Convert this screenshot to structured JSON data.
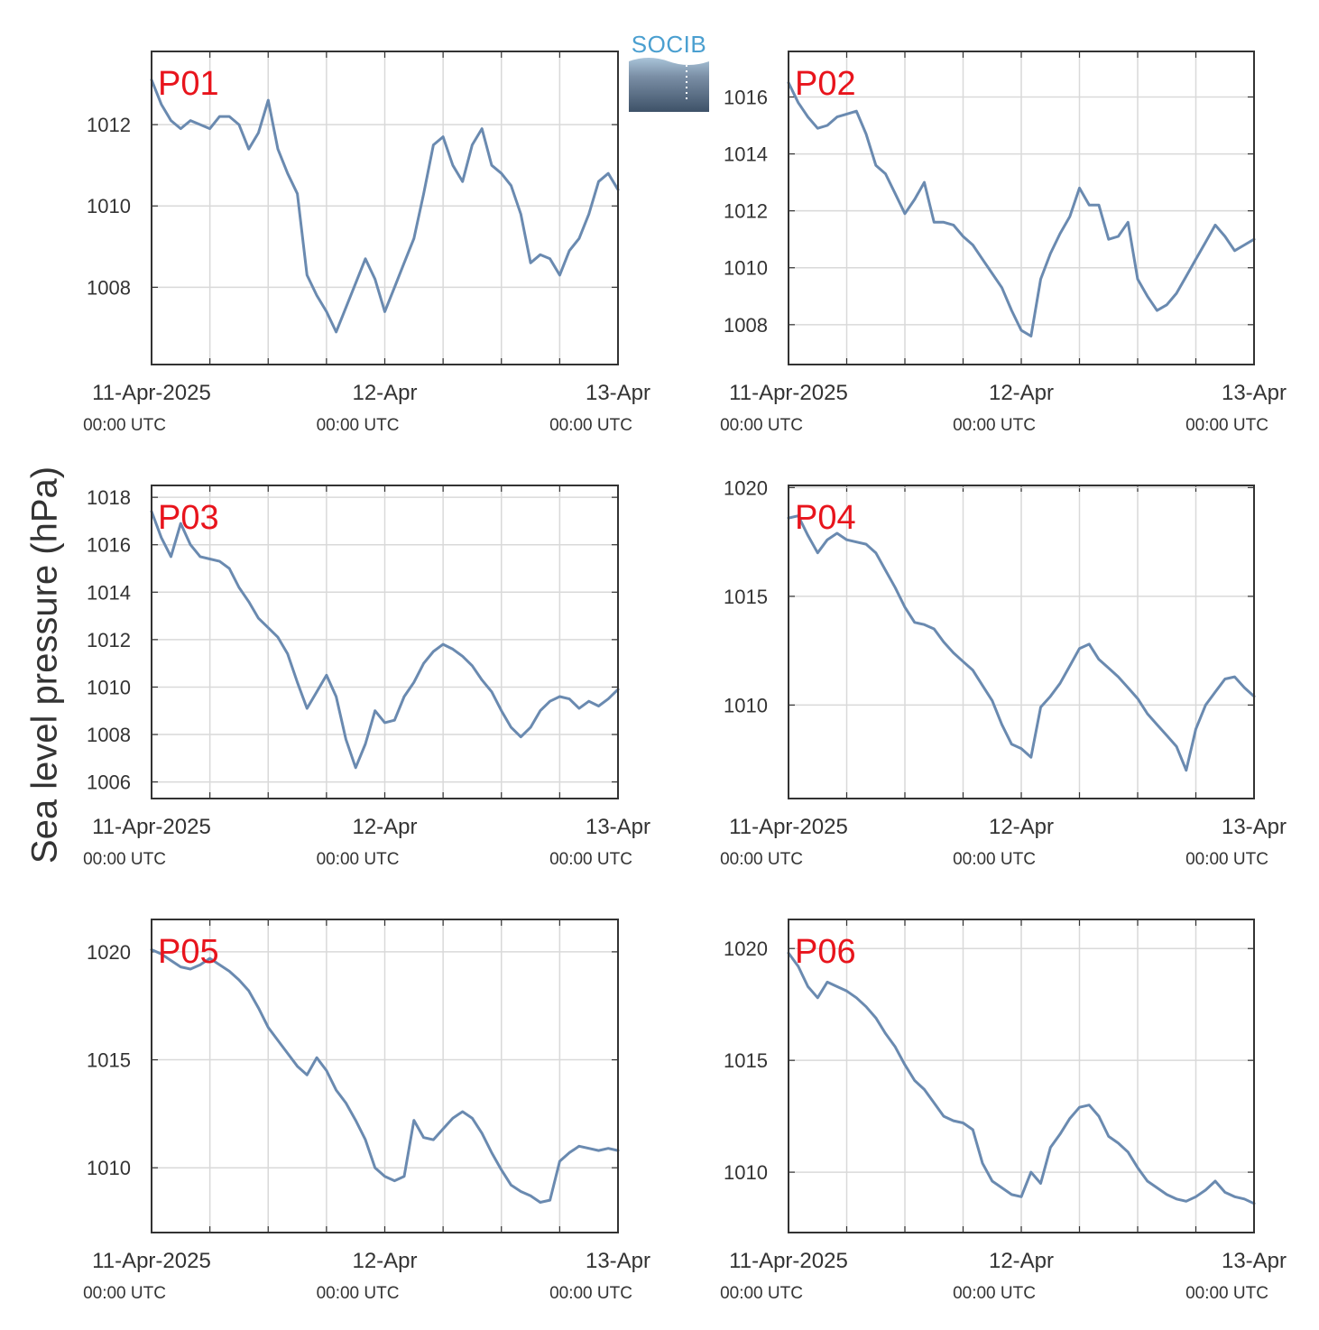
{
  "figure": {
    "ylabel": "Sea level pressure (hPa)",
    "logo_text": "SOCIB"
  },
  "colors": {
    "line": "#6a8ab0",
    "panel_label": "#e8141c",
    "grid": "#d9d9d9",
    "axis": "#333333"
  },
  "chart_data": [
    {
      "type": "line",
      "title": "P01",
      "x_tick_labels": [
        [
          "11-Apr-2025",
          "00:00 UTC"
        ],
        [
          "12-Apr",
          "00:00 UTC"
        ],
        [
          "13-Apr",
          "00:00 UTC"
        ]
      ],
      "xlim_hours": [
        0,
        48
      ],
      "ylim": [
        1006.1,
        1013.8
      ],
      "yticks": [
        1008,
        1010,
        1012
      ],
      "series": [
        {
          "x_hours": [
            0,
            1,
            2,
            3,
            4,
            5,
            6,
            7,
            8,
            9,
            10,
            11,
            12,
            13,
            14,
            15,
            16,
            17,
            18,
            19,
            20,
            21,
            22,
            23,
            24,
            25,
            26,
            27,
            28,
            29,
            30,
            31,
            32,
            33,
            34,
            35,
            36,
            37,
            38,
            39,
            40,
            41,
            42,
            43,
            44,
            45,
            46,
            47,
            48
          ],
          "values": [
            1013.1,
            1012.5,
            1012.1,
            1011.9,
            1012.1,
            1012.0,
            1011.9,
            1012.2,
            1012.2,
            1012.0,
            1011.4,
            1011.8,
            1012.6,
            1011.4,
            1010.8,
            1010.3,
            1008.3,
            1007.8,
            1007.4,
            1006.9,
            1007.5,
            1008.1,
            1008.7,
            1008.2,
            1007.4,
            1008.0,
            1008.6,
            1009.2,
            1010.3,
            1011.5,
            1011.7,
            1011.0,
            1010.6,
            1011.5,
            1011.9,
            1011.0,
            1010.8,
            1010.5,
            1009.8,
            1008.6,
            1008.8,
            1008.7,
            1008.3,
            1008.9,
            1009.2,
            1009.8,
            1010.6,
            1010.8,
            1010.4
          ]
        }
      ]
    },
    {
      "type": "line",
      "title": "P02",
      "x_tick_labels": [
        [
          "11-Apr-2025",
          "00:00 UTC"
        ],
        [
          "12-Apr",
          "00:00 UTC"
        ],
        [
          "13-Apr",
          "00:00 UTC"
        ]
      ],
      "xlim_hours": [
        0,
        48
      ],
      "ylim": [
        1006.6,
        1017.6
      ],
      "yticks": [
        1008,
        1010,
        1012,
        1014,
        1016
      ],
      "series": [
        {
          "x_hours": [
            0,
            1,
            2,
            3,
            4,
            5,
            6,
            7,
            8,
            9,
            10,
            11,
            12,
            13,
            14,
            15,
            16,
            17,
            18,
            19,
            20,
            21,
            22,
            23,
            24,
            25,
            26,
            27,
            28,
            29,
            30,
            31,
            32,
            33,
            34,
            35,
            36,
            37,
            38,
            39,
            40,
            41,
            42,
            43,
            44,
            45,
            46,
            47,
            48
          ],
          "values": [
            1016.5,
            1015.8,
            1015.3,
            1014.9,
            1015.0,
            1015.3,
            1015.4,
            1015.5,
            1014.7,
            1013.6,
            1013.3,
            1012.6,
            1011.9,
            1012.4,
            1013.0,
            1011.6,
            1011.6,
            1011.5,
            1011.1,
            1010.8,
            1010.3,
            1009.8,
            1009.3,
            1008.5,
            1007.8,
            1007.6,
            1009.6,
            1010.5,
            1011.2,
            1011.8,
            1012.8,
            1012.2,
            1012.2,
            1011.0,
            1011.1,
            1011.6,
            1009.6,
            1009.0,
            1008.5,
            1008.7,
            1009.1,
            1009.7,
            1010.3,
            1010.9,
            1011.5,
            1011.1,
            1010.6,
            1010.8,
            1011.0
          ]
        }
      ]
    },
    {
      "type": "line",
      "title": "P03",
      "x_tick_labels": [
        [
          "11-Apr-2025",
          "00:00 UTC"
        ],
        [
          "12-Apr",
          "00:00 UTC"
        ],
        [
          "13-Apr",
          "00:00 UTC"
        ]
      ],
      "xlim_hours": [
        0,
        48
      ],
      "ylim": [
        1005.3,
        1018.5
      ],
      "yticks": [
        1006,
        1008,
        1010,
        1012,
        1014,
        1016,
        1018
      ],
      "series": [
        {
          "x_hours": [
            0,
            1,
            2,
            3,
            4,
            5,
            6,
            7,
            8,
            9,
            10,
            11,
            12,
            13,
            14,
            15,
            16,
            17,
            18,
            19,
            20,
            21,
            22,
            23,
            24,
            25,
            26,
            27,
            28,
            29,
            30,
            31,
            32,
            33,
            34,
            35,
            36,
            37,
            38,
            39,
            40,
            41,
            42,
            43,
            44,
            45,
            46,
            47,
            48
          ],
          "values": [
            1017.4,
            1016.3,
            1015.5,
            1016.9,
            1016.0,
            1015.5,
            1015.4,
            1015.3,
            1015.0,
            1014.2,
            1013.6,
            1012.9,
            1012.5,
            1012.1,
            1011.4,
            1010.2,
            1009.1,
            1009.8,
            1010.5,
            1009.6,
            1007.8,
            1006.6,
            1007.6,
            1009.0,
            1008.5,
            1008.6,
            1009.6,
            1010.2,
            1011.0,
            1011.5,
            1011.8,
            1011.6,
            1011.3,
            1010.9,
            1010.3,
            1009.8,
            1009.0,
            1008.3,
            1007.9,
            1008.3,
            1009.0,
            1009.4,
            1009.6,
            1009.5,
            1009.1,
            1009.4,
            1009.2,
            1009.5,
            1009.9
          ]
        }
      ]
    },
    {
      "type": "line",
      "title": "P04",
      "x_tick_labels": [
        [
          "11-Apr-2025",
          "00:00 UTC"
        ],
        [
          "12-Apr",
          "00:00 UTC"
        ],
        [
          "13-Apr",
          "00:00 UTC"
        ]
      ],
      "xlim_hours": [
        0,
        48
      ],
      "ylim": [
        1005.7,
        1020.1
      ],
      "yticks": [
        1010,
        1015,
        1020
      ],
      "series": [
        {
          "x_hours": [
            0,
            1,
            2,
            3,
            4,
            5,
            6,
            7,
            8,
            9,
            10,
            11,
            12,
            13,
            14,
            15,
            16,
            17,
            18,
            19,
            20,
            21,
            22,
            23,
            24,
            25,
            26,
            27,
            28,
            29,
            30,
            31,
            32,
            33,
            34,
            35,
            36,
            37,
            38,
            39,
            40,
            41,
            42,
            43,
            44,
            45,
            46,
            47,
            48
          ],
          "values": [
            1018.6,
            1018.7,
            1017.8,
            1017.0,
            1017.6,
            1017.9,
            1017.6,
            1017.5,
            1017.4,
            1017.0,
            1016.2,
            1015.4,
            1014.5,
            1013.8,
            1013.7,
            1013.5,
            1012.9,
            1012.4,
            1012.0,
            1011.6,
            1010.9,
            1010.2,
            1009.1,
            1008.2,
            1008.0,
            1007.6,
            1009.9,
            1010.4,
            1011.0,
            1011.8,
            1012.6,
            1012.8,
            1012.1,
            1011.7,
            1011.3,
            1010.8,
            1010.3,
            1009.6,
            1009.1,
            1008.6,
            1008.1,
            1007.0,
            1008.9,
            1010.0,
            1010.6,
            1011.2,
            1011.3,
            1010.8,
            1010.4
          ]
        }
      ]
    },
    {
      "type": "line",
      "title": "P05",
      "x_tick_labels": [
        [
          "11-Apr-2025",
          "00:00 UTC"
        ],
        [
          "12-Apr",
          "00:00 UTC"
        ],
        [
          "13-Apr",
          "00:00 UTC"
        ]
      ],
      "xlim_hours": [
        0,
        48
      ],
      "ylim": [
        1007.0,
        1021.5
      ],
      "yticks": [
        1010,
        1015,
        1020
      ],
      "series": [
        {
          "x_hours": [
            0,
            1,
            2,
            3,
            4,
            5,
            6,
            7,
            8,
            9,
            10,
            11,
            12,
            13,
            14,
            15,
            16,
            17,
            18,
            19,
            20,
            21,
            22,
            23,
            24,
            25,
            26,
            27,
            28,
            29,
            30,
            31,
            32,
            33,
            34,
            35,
            36,
            37,
            38,
            39,
            40,
            41,
            42,
            43,
            44,
            45,
            46,
            47,
            48
          ],
          "values": [
            1020.1,
            1019.9,
            1019.6,
            1019.3,
            1019.2,
            1019.4,
            1019.7,
            1019.4,
            1019.1,
            1018.7,
            1018.2,
            1017.4,
            1016.5,
            1015.9,
            1015.3,
            1014.7,
            1014.3,
            1015.1,
            1014.5,
            1013.6,
            1013.0,
            1012.2,
            1011.3,
            1010.0,
            1009.6,
            1009.4,
            1009.6,
            1012.2,
            1011.4,
            1011.3,
            1011.8,
            1012.3,
            1012.6,
            1012.3,
            1011.6,
            1010.7,
            1009.9,
            1009.2,
            1008.9,
            1008.7,
            1008.4,
            1008.5,
            1010.3,
            1010.7,
            1011.0,
            1010.9,
            1010.8,
            1010.9,
            1010.8
          ]
        }
      ]
    },
    {
      "type": "line",
      "title": "P06",
      "x_tick_labels": [
        [
          "11-Apr-2025",
          "00:00 UTC"
        ],
        [
          "12-Apr",
          "00:00 UTC"
        ],
        [
          "13-Apr",
          "00:00 UTC"
        ]
      ],
      "xlim_hours": [
        0,
        48
      ],
      "ylim": [
        1007.3,
        1021.3
      ],
      "yticks": [
        1010,
        1015,
        1020
      ],
      "series": [
        {
          "x_hours": [
            0,
            1,
            2,
            3,
            4,
            5,
            6,
            7,
            8,
            9,
            10,
            11,
            12,
            13,
            14,
            15,
            16,
            17,
            18,
            19,
            20,
            21,
            22,
            23,
            24,
            25,
            26,
            27,
            28,
            29,
            30,
            31,
            32,
            33,
            34,
            35,
            36,
            37,
            38,
            39,
            40,
            41,
            42,
            43,
            44,
            45,
            46,
            47,
            48
          ],
          "values": [
            1019.8,
            1019.2,
            1018.3,
            1017.8,
            1018.5,
            1018.3,
            1018.1,
            1017.8,
            1017.4,
            1016.9,
            1016.2,
            1015.6,
            1014.8,
            1014.1,
            1013.7,
            1013.1,
            1012.5,
            1012.3,
            1012.2,
            1011.9,
            1010.4,
            1009.6,
            1009.3,
            1009.0,
            1008.9,
            1010.0,
            1009.5,
            1011.1,
            1011.7,
            1012.4,
            1012.9,
            1013.0,
            1012.5,
            1011.6,
            1011.3,
            1010.9,
            1010.2,
            1009.6,
            1009.3,
            1009.0,
            1008.8,
            1008.7,
            1008.9,
            1009.2,
            1009.6,
            1009.1,
            1008.9,
            1008.8,
            1008.6
          ]
        }
      ]
    }
  ]
}
